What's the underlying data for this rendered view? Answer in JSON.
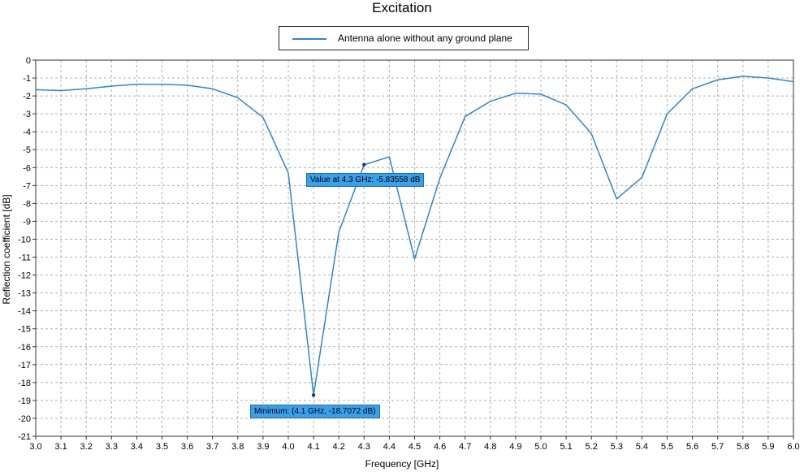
{
  "chart_data": {
    "type": "line",
    "title": "Excitation",
    "xlabel": "Frequency [GHz]",
    "ylabel": "Reflection coefficient [dB]",
    "xlim": [
      3.0,
      6.0
    ],
    "ylim": [
      -21,
      0
    ],
    "x_ticks": [
      "3.0",
      "3.1",
      "3.2",
      "3.3",
      "3.4",
      "3.5",
      "3.6",
      "3.7",
      "3.8",
      "3.9",
      "4.0",
      "4.1",
      "4.2",
      "4.3",
      "4.4",
      "4.5",
      "4.6",
      "4.7",
      "4.8",
      "4.9",
      "5.0",
      "5.1",
      "5.2",
      "5.3",
      "5.4",
      "5.5",
      "5.6",
      "5.7",
      "5.8",
      "5.9",
      "6.0"
    ],
    "y_ticks": [
      "0",
      "-1",
      "-2",
      "-3",
      "-4",
      "-5",
      "-6",
      "-7",
      "-8",
      "-9",
      "-10",
      "-11",
      "-12",
      "-13",
      "-14",
      "-15",
      "-16",
      "-17",
      "-18",
      "-19",
      "-20",
      "-21"
    ],
    "grid": true,
    "legend_position": "top-center",
    "series": [
      {
        "name": "Antenna alone without any ground plane",
        "color": "#2f86c9",
        "x": [
          3.0,
          3.1,
          3.2,
          3.3,
          3.4,
          3.5,
          3.6,
          3.7,
          3.8,
          3.9,
          4.0,
          4.1,
          4.2,
          4.3,
          4.4,
          4.5,
          4.6,
          4.7,
          4.8,
          4.9,
          5.0,
          5.1,
          5.2,
          5.3,
          5.4,
          5.5,
          5.6,
          5.7,
          5.8,
          5.9,
          6.0
        ],
        "y": [
          -1.65,
          -1.7,
          -1.6,
          -1.45,
          -1.35,
          -1.35,
          -1.4,
          -1.6,
          -2.1,
          -3.2,
          -6.3,
          -18.71,
          -9.6,
          -5.84,
          -5.4,
          -11.1,
          -6.6,
          -3.15,
          -2.3,
          -1.85,
          -1.9,
          -2.5,
          -4.1,
          -7.75,
          -6.55,
          -3.0,
          -1.6,
          -1.1,
          -0.9,
          -1.0,
          -1.2
        ]
      }
    ],
    "annotations": [
      {
        "text": "Value at 4.3 GHz: -5.83558 dB",
        "x": 4.3,
        "y": -5.83558
      },
      {
        "text": "Minimum: (4.1 GHz, -18.7072 dB)",
        "x": 4.1,
        "y": -18.7072
      }
    ]
  }
}
